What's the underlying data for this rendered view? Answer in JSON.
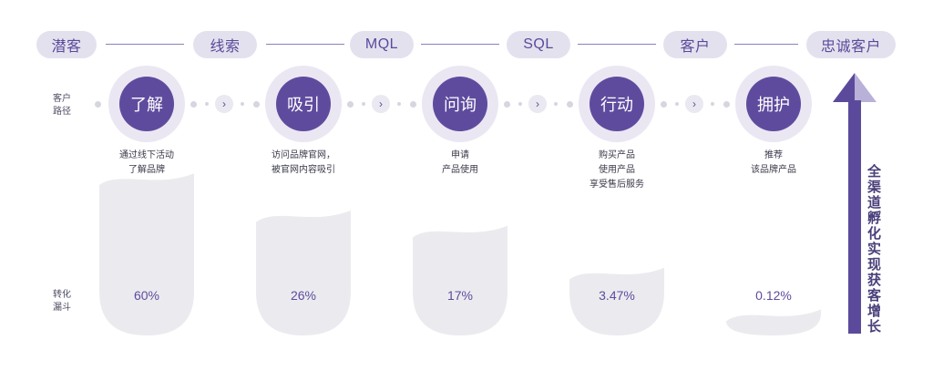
{
  "stages": [
    "潜客",
    "线索",
    "MQL",
    "SQL",
    "客户",
    "忠诚客户"
  ],
  "path_label": [
    "客户",
    "路径"
  ],
  "funnel_label": [
    "转化",
    "漏斗"
  ],
  "steps": [
    {
      "name": "了解",
      "desc": [
        "通过线下活动",
        "了解品牌"
      ],
      "rate": "60%",
      "level": 0.6
    },
    {
      "name": "吸引",
      "desc": [
        "访问品牌官网，",
        "被官网内容吸引"
      ],
      "rate": "26%",
      "level": 0.26
    },
    {
      "name": "问询",
      "desc": [
        "申请",
        "产品使用"
      ],
      "rate": "17%",
      "level": 0.17
    },
    {
      "name": "行动",
      "desc": [
        "购买产品",
        "使用产品",
        "享受售后服务"
      ],
      "rate": "3.47%",
      "level": 0.0347
    },
    {
      "name": "拥护",
      "desc": [
        "推荐",
        "该品牌产品"
      ],
      "rate": "0.12%",
      "level": 0.0012
    }
  ],
  "arrow_glyph": "›",
  "growth_text": [
    "全渠道孵化",
    "实现获客增长"
  ],
  "colors": {
    "accent": "#5f4b9e",
    "pill_bg": "#e4e1ef",
    "funnel_fill": "#ebebef",
    "arrow": "#5b4a9c",
    "arrow_light": "#b9b1d8"
  }
}
